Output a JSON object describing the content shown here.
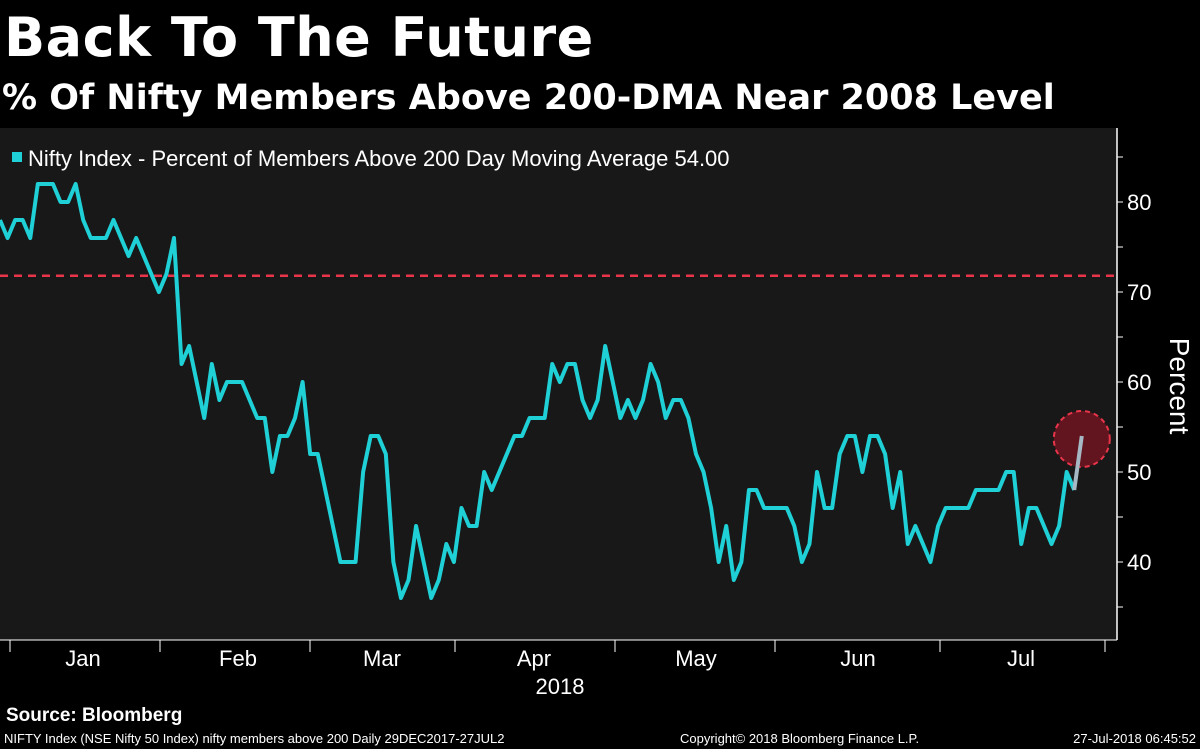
{
  "header": {
    "title": "Back To The Future",
    "subtitle": "% Of Nifty Members Above 200-DMA Near 2008 Level"
  },
  "chart_data": {
    "type": "line",
    "legend": "Nifty Index - Percent of Members Above 200 Day Moving Average 54.00",
    "legend_placement": "top-left",
    "ylabel": "Percent",
    "xlabel": "2018",
    "ylim": [
      31.3,
      88
    ],
    "yticks": [
      40,
      50,
      60,
      70,
      80
    ],
    "xtick_labels": [
      "Jan",
      "Feb",
      "Mar",
      "Apr",
      "May",
      "Jun",
      "Jul"
    ],
    "x_unit": "trading days since 29-Dec-2017",
    "reference_line": {
      "value": 71.8,
      "color": "#e8354a",
      "style": "dashed"
    },
    "highlight_last_point": true,
    "series": [
      {
        "name": "Nifty Index - Percent of Members Above 200 Day Moving Average",
        "color": "#1fd1d6",
        "x": [
          0,
          1,
          2,
          3,
          4,
          5,
          7,
          8,
          9,
          10,
          11,
          12,
          14,
          15,
          17,
          18,
          20,
          21,
          22,
          23,
          24,
          25,
          27,
          28,
          29,
          30,
          32,
          34,
          35,
          36,
          37,
          38,
          39,
          40,
          41,
          42,
          45,
          47,
          48,
          49,
          50,
          51,
          52,
          53,
          54,
          55,
          57,
          58,
          59,
          60,
          61,
          62,
          63,
          64,
          65,
          68,
          69,
          70,
          72,
          73,
          74,
          75,
          76,
          77,
          78,
          79,
          80,
          82,
          83,
          84,
          85,
          86,
          87,
          88,
          89,
          90,
          91,
          92,
          93,
          94,
          95,
          96,
          97,
          98,
          99,
          100,
          101,
          104,
          105,
          106,
          107,
          108,
          109,
          110,
          111,
          112,
          113,
          114,
          115,
          116,
          117,
          118,
          119,
          120,
          121,
          123,
          124,
          125,
          128,
          129,
          132,
          133,
          134,
          135,
          136,
          137,
          139,
          140,
          141,
          142,
          143
        ],
        "values": [
          78,
          76,
          78,
          78,
          76,
          82,
          82,
          80,
          80,
          82,
          78,
          76,
          76,
          78,
          74,
          76,
          72,
          70,
          72,
          76,
          62,
          64,
          56,
          62,
          58,
          60,
          60,
          56,
          56,
          50,
          54,
          54,
          56,
          60,
          52,
          52,
          40,
          40,
          50,
          54,
          54,
          52,
          40,
          36,
          38,
          44,
          36,
          38,
          42,
          40,
          46,
          44,
          44,
          50,
          48,
          54,
          54,
          56,
          56,
          62,
          60,
          62,
          62,
          58,
          56,
          58,
          64,
          56,
          58,
          56,
          58,
          62,
          60,
          56,
          58,
          58,
          56,
          52,
          50,
          46,
          40,
          44,
          38,
          40,
          48,
          48,
          46,
          46,
          44,
          40,
          42,
          50,
          46,
          46,
          52,
          54,
          54,
          50,
          54,
          54,
          52,
          46,
          50,
          42,
          44,
          40,
          44,
          46,
          46,
          48,
          48,
          50,
          50,
          42,
          46,
          46,
          42,
          44,
          50,
          48,
          54
        ]
      }
    ]
  },
  "footer": {
    "source": "Source: Bloomberg",
    "ticker_info": "NIFTY Index (NSE Nifty 50 Index) nifty members above 200  Daily 29DEC2017-27JUL2",
    "copyright": "Copyright© 2018 Bloomberg Finance L.P.",
    "timestamp": "27-Jul-2018 06:45:52"
  }
}
